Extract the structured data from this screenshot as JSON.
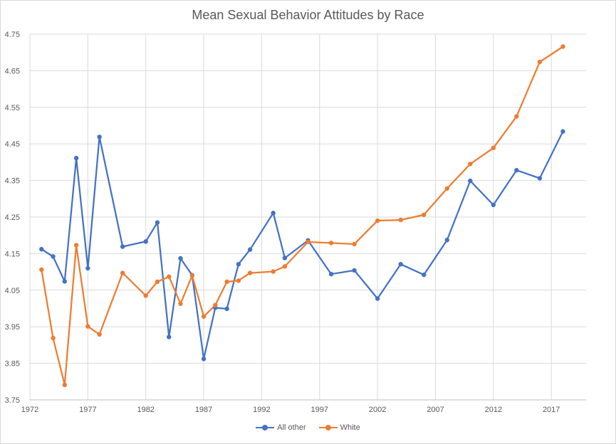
{
  "chart_data": {
    "type": "line",
    "title": "Mean Sexual Behavior Attitudes by Race",
    "xlabel": "",
    "ylabel": "",
    "xlim": [
      1972,
      2020
    ],
    "ylim": [
      3.75,
      4.75
    ],
    "x_ticks": [
      1972,
      1977,
      1982,
      1987,
      1992,
      1997,
      2002,
      2007,
      2012,
      2017
    ],
    "y_ticks": [
      3.75,
      3.85,
      3.95,
      4.05,
      4.15,
      4.25,
      4.35,
      4.45,
      4.55,
      4.65,
      4.75
    ],
    "x_tick_labels": [
      "1972",
      "1977",
      "1982",
      "1987",
      "1992",
      "1997",
      "2002",
      "2007",
      "2012",
      "2017"
    ],
    "y_tick_labels": [
      "3.75",
      "3.85",
      "3.95",
      "4.05",
      "4.15",
      "4.25",
      "4.35",
      "4.45",
      "4.55",
      "4.65",
      "4.75"
    ],
    "grid": "vertical and horizontal",
    "legend_position": "bottom",
    "series": [
      {
        "name": "All other",
        "color": "#4472c4",
        "x": [
          1973,
          1974,
          1975,
          1976,
          1977,
          1978,
          1980,
          1982,
          1983,
          1984,
          1985,
          1986,
          1987,
          1988,
          1989,
          1990,
          1991,
          1993,
          1994,
          1996,
          1998,
          2000,
          2002,
          2004,
          2006,
          2008,
          2010,
          2012,
          2014,
          2016,
          2018
        ],
        "y": [
          4.162,
          4.142,
          4.074,
          4.411,
          4.11,
          4.469,
          4.169,
          4.183,
          4.235,
          3.922,
          4.137,
          4.091,
          3.862,
          4.002,
          3.999,
          4.121,
          4.161,
          4.261,
          4.138,
          4.186,
          4.094,
          4.104,
          4.027,
          4.121,
          4.092,
          4.187,
          4.349,
          4.283,
          4.378,
          4.356,
          4.484
        ]
      },
      {
        "name": "White",
        "color": "#ed7d31",
        "x": [
          1973,
          1974,
          1975,
          1976,
          1977,
          1978,
          1980,
          1982,
          1983,
          1984,
          1985,
          1986,
          1987,
          1988,
          1989,
          1990,
          1991,
          1993,
          1994,
          1996,
          1998,
          2000,
          2002,
          2004,
          2006,
          2008,
          2010,
          2012,
          2014,
          2016,
          2018
        ],
        "y": [
          4.106,
          3.919,
          3.791,
          4.173,
          3.951,
          3.929,
          4.097,
          4.035,
          4.073,
          4.087,
          4.013,
          4.09,
          3.978,
          4.009,
          4.073,
          4.076,
          4.097,
          4.101,
          4.115,
          4.182,
          4.179,
          4.176,
          4.24,
          4.242,
          4.256,
          4.328,
          4.395,
          4.439,
          4.525,
          4.674,
          4.716
        ]
      }
    ]
  }
}
